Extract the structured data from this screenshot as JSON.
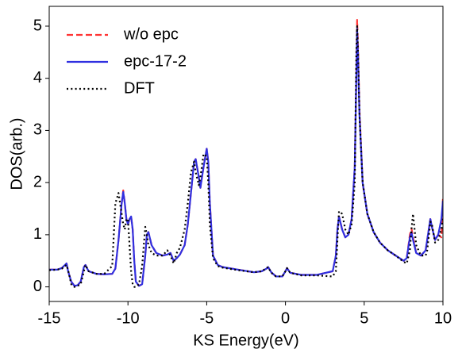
{
  "chart_data": {
    "type": "line",
    "xlabel": "KS Energy(eV)",
    "ylabel": "DOS(arb.)",
    "xlim": [
      -15,
      10
    ],
    "ylim": [
      -0.28,
      5.38
    ],
    "xticks": [
      -15,
      -10,
      -5,
      0,
      5,
      10
    ],
    "yticks": [
      0,
      1,
      2,
      3,
      4,
      5
    ],
    "legend": "upper left",
    "x": [
      -15,
      -14.5,
      -14.2,
      -14.0,
      -13.9,
      -13.8,
      -13.6,
      -13.4,
      -13.2,
      -13.0,
      -12.8,
      -12.7,
      -12.5,
      -12.0,
      -11.5,
      -11.0,
      -10.8,
      -10.6,
      -10.4,
      -10.3,
      -10.2,
      -10.1,
      -10.0,
      -9.9,
      -9.8,
      -9.7,
      -9.6,
      -9.5,
      -9.3,
      -9.1,
      -8.9,
      -8.8,
      -8.7,
      -8.5,
      -8.2,
      -7.8,
      -7.5,
      -7.3,
      -7.1,
      -6.9,
      -6.7,
      -6.4,
      -6.2,
      -6.0,
      -5.8,
      -5.7,
      -5.5,
      -5.4,
      -5.2,
      -5.0,
      -4.9,
      -4.8,
      -4.6,
      -4.3,
      -4.0,
      -3.0,
      -2.0,
      -1.5,
      -1.2,
      -1.1,
      -0.9,
      -0.6,
      -0.2,
      0.0,
      0.1,
      0.3,
      1.0,
      2.0,
      3.0,
      3.2,
      3.3,
      3.4,
      3.6,
      3.8,
      4.0,
      4.2,
      4.4,
      4.5,
      4.55,
      4.6,
      4.7,
      4.9,
      5.2,
      5.6,
      6.0,
      6.5,
      7.0,
      7.5,
      7.7,
      7.9,
      8.0,
      8.1,
      8.3,
      8.6,
      8.9,
      9.0,
      9.2,
      9.3,
      9.5,
      9.7,
      9.9,
      10.0
    ],
    "series": [
      {
        "name": "w/o epc",
        "color": "#ff3333",
        "style": "dashed",
        "values": [
          0.33,
          0.33,
          0.36,
          0.42,
          0.45,
          0.3,
          0.1,
          0.02,
          0.03,
          0.1,
          0.38,
          0.42,
          0.3,
          0.25,
          0.24,
          0.25,
          0.35,
          0.9,
          1.6,
          1.85,
          1.6,
          1.3,
          1.2,
          1.3,
          1.35,
          1.1,
          0.5,
          0.1,
          0.02,
          0.05,
          0.6,
          1.0,
          1.05,
          0.8,
          0.65,
          0.6,
          0.62,
          0.65,
          0.5,
          0.55,
          0.62,
          0.8,
          1.2,
          1.8,
          2.4,
          2.45,
          2.1,
          1.9,
          2.3,
          2.65,
          2.4,
          1.6,
          0.6,
          0.42,
          0.38,
          0.33,
          0.28,
          0.3,
          0.35,
          0.38,
          0.28,
          0.2,
          0.2,
          0.3,
          0.36,
          0.27,
          0.23,
          0.23,
          0.3,
          0.6,
          1.1,
          1.35,
          1.1,
          0.95,
          1.0,
          1.3,
          2.3,
          4.1,
          5.12,
          4.7,
          3.4,
          2.0,
          1.4,
          1.05,
          0.85,
          0.7,
          0.6,
          0.5,
          0.55,
          1.0,
          1.12,
          0.95,
          0.65,
          0.6,
          0.7,
          0.9,
          1.3,
          1.15,
          0.9,
          1.0,
          0.95,
          1.7
        ]
      },
      {
        "name": "epc-17-2",
        "color": "#3030e0",
        "style": "solid",
        "values": [
          0.33,
          0.33,
          0.36,
          0.42,
          0.45,
          0.3,
          0.1,
          0.02,
          0.03,
          0.1,
          0.38,
          0.42,
          0.3,
          0.25,
          0.24,
          0.25,
          0.35,
          0.9,
          1.6,
          1.82,
          1.6,
          1.3,
          1.2,
          1.3,
          1.35,
          1.1,
          0.5,
          0.1,
          0.02,
          0.05,
          0.6,
          1.0,
          1.05,
          0.8,
          0.65,
          0.6,
          0.62,
          0.65,
          0.5,
          0.55,
          0.62,
          0.8,
          1.2,
          1.8,
          2.4,
          2.45,
          2.1,
          1.9,
          2.3,
          2.65,
          2.4,
          1.6,
          0.6,
          0.42,
          0.38,
          0.33,
          0.28,
          0.3,
          0.35,
          0.38,
          0.28,
          0.2,
          0.2,
          0.3,
          0.36,
          0.27,
          0.23,
          0.23,
          0.3,
          0.6,
          1.1,
          1.35,
          1.1,
          0.95,
          1.0,
          1.3,
          2.3,
          4.0,
          4.95,
          4.5,
          3.3,
          2.0,
          1.4,
          1.05,
          0.85,
          0.7,
          0.6,
          0.5,
          0.55,
          0.95,
          1.05,
          0.9,
          0.65,
          0.6,
          0.7,
          0.9,
          1.3,
          1.15,
          0.9,
          1.0,
          1.3,
          1.65
        ]
      },
      {
        "name": "DFT",
        "color": "#000000",
        "style": "dotted",
        "values": [
          0.32,
          0.33,
          0.35,
          0.4,
          0.42,
          0.32,
          0.05,
          0.0,
          0.02,
          0.05,
          0.3,
          0.42,
          0.3,
          0.25,
          0.25,
          0.4,
          1.6,
          1.8,
          1.4,
          1.2,
          1.1,
          1.3,
          1.3,
          0.8,
          0.3,
          0.05,
          0.0,
          0.0,
          0.05,
          0.4,
          1.15,
          1.0,
          0.8,
          0.65,
          0.6,
          0.6,
          0.7,
          0.6,
          0.45,
          0.65,
          0.75,
          1.1,
          1.6,
          2.2,
          2.4,
          2.2,
          1.95,
          2.1,
          2.55,
          2.5,
          2.0,
          1.2,
          0.55,
          0.4,
          0.37,
          0.32,
          0.28,
          0.3,
          0.36,
          0.38,
          0.27,
          0.2,
          0.2,
          0.3,
          0.36,
          0.27,
          0.22,
          0.22,
          0.2,
          0.3,
          0.9,
          1.45,
          1.4,
          1.1,
          1.0,
          1.2,
          2.0,
          4.5,
          5.0,
          4.6,
          3.3,
          2.0,
          1.4,
          1.05,
          0.85,
          0.7,
          0.6,
          0.48,
          0.45,
          0.7,
          1.1,
          1.4,
          0.8,
          0.6,
          0.6,
          0.7,
          1.25,
          1.2,
          0.85,
          0.9,
          1.1,
          1.3
        ]
      }
    ]
  }
}
